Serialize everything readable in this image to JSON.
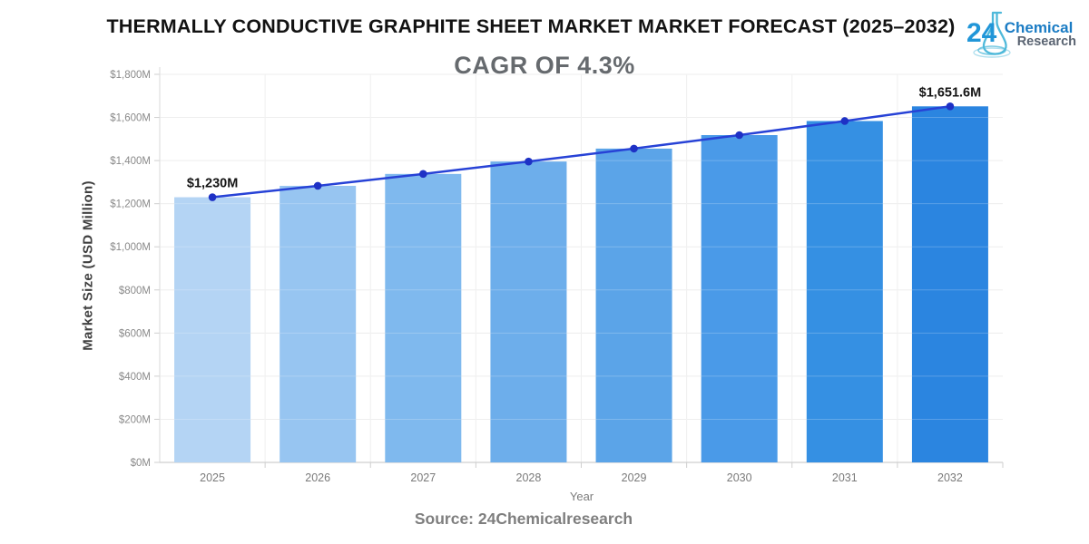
{
  "header": {
    "title": "THERMALLY CONDUCTIVE GRAPHITE SHEET MARKET MARKET FORECAST (2025–2032)",
    "logo": {
      "number": "24",
      "line1": "Chemical",
      "line2": "Research"
    }
  },
  "subtitle": "CAGR OF 4.3%",
  "footer": {
    "source": "Source: 24Chemicalresearch"
  },
  "chart_data": {
    "type": "bar",
    "title": "THERMALLY CONDUCTIVE GRAPHITE SHEET MARKET MARKET FORECAST (2025–2032)",
    "subtitle": "CAGR OF 4.3%",
    "categories": [
      "2025",
      "2026",
      "2027",
      "2028",
      "2029",
      "2030",
      "2031",
      "2032"
    ],
    "series": [
      {
        "name": "Market Size",
        "type": "bar",
        "values": [
          1230,
          1282.9,
          1338.1,
          1395.6,
          1455.6,
          1518.2,
          1583.5,
          1651.6
        ],
        "bar_colors": [
          "#b4d4f4",
          "#97c5f1",
          "#7fb9ee",
          "#6daeeb",
          "#5ba4e8",
          "#4a9ae8",
          "#3590e3",
          "#2b85e0"
        ]
      },
      {
        "name": "Trend",
        "type": "line",
        "values": [
          1230,
          1282.9,
          1338.1,
          1395.6,
          1455.6,
          1518.2,
          1583.5,
          1651.6
        ],
        "line_color": "#2742d6",
        "point_color": "#1e31c5"
      }
    ],
    "annotations": [
      {
        "index": 0,
        "text": "$1,230M"
      },
      {
        "index": 7,
        "text": "$1,651.6M"
      }
    ],
    "xlabel": "Year",
    "ylabel": "Market Size (USD Million)",
    "ylim": [
      0,
      1800
    ],
    "ytick_step": 200,
    "ytick_labels": [
      "$0M",
      "$200M",
      "$400M",
      "$600M",
      "$800M",
      "$1,000M",
      "$1,200M",
      "$1,400M",
      "$1,600M",
      "$1,800M"
    ],
    "grid": true,
    "legend": "none",
    "colors": {
      "grid_line": "#e9e9e9",
      "axis_line": "#cfcfcf",
      "tick_label": "#8a8a8a",
      "annotation": "#141414"
    }
  }
}
